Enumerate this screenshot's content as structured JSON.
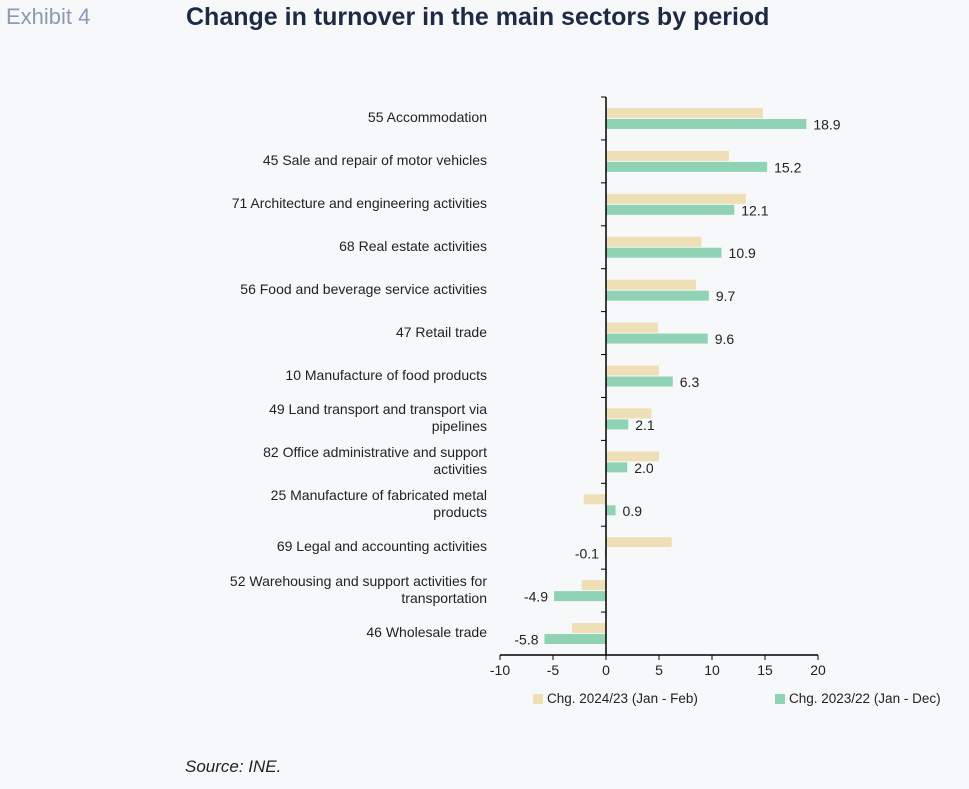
{
  "header": {
    "exhibit": "Exhibit 4",
    "title": "Change in turnover in the main sectors by period"
  },
  "source": "Source: INE.",
  "colors": {
    "series_a": "#efdfb7",
    "series_b": "#8fd3b4",
    "axis": "#000000"
  },
  "chart_data": {
    "type": "bar",
    "orientation": "horizontal",
    "categories": [
      "55 Accommodation",
      "45 Sale and repair of motor vehicles",
      "71 Architecture and engineering activities",
      "68 Real estate activities",
      "56 Food and beverage service activities",
      "47 Retail trade",
      "10 Manufacture of food products",
      "49 Land transport and transport via pipelines",
      "82 Office administrative and support activities",
      "25 Manufacture of fabricated metal products",
      "69 Legal and accounting activities",
      "52 Warehousing and support activities for transportation",
      "46 Wholesale trade"
    ],
    "category_lines": [
      [
        "55 Accommodation"
      ],
      [
        "45 Sale and repair of motor vehicles"
      ],
      [
        "71 Architecture and engineering activities"
      ],
      [
        "68 Real estate activities"
      ],
      [
        "56 Food and beverage service activities"
      ],
      [
        "47 Retail trade"
      ],
      [
        "10 Manufacture of food products"
      ],
      [
        "49 Land transport and transport via",
        "pipelines"
      ],
      [
        "82 Office administrative and support",
        "activities"
      ],
      [
        "25 Manufacture of fabricated metal",
        "products"
      ],
      [
        "69 Legal and accounting activities"
      ],
      [
        "52 Warehousing and support activities for",
        "transportation"
      ],
      [
        "46 Wholesale trade"
      ]
    ],
    "series": [
      {
        "name": "Chg. 2024/23 (Jan - Feb)",
        "values": [
          14.8,
          11.6,
          13.2,
          9.0,
          8.5,
          4.9,
          5.0,
          4.3,
          5.0,
          -2.1,
          6.2,
          -2.3,
          -3.2
        ]
      },
      {
        "name": "Chg. 2023/22 (Jan - Dec)",
        "values": [
          18.9,
          15.2,
          12.1,
          10.9,
          9.7,
          9.6,
          6.3,
          2.1,
          2.0,
          0.9,
          -0.1,
          -4.9,
          -5.8
        ],
        "data_labels": [
          "18.9",
          "15.2",
          "12.1",
          "10.9",
          "9.7",
          "9.6",
          "6.3",
          "2.1",
          "2.0",
          "0.9",
          "-0.1",
          "-4.9",
          "-5.8"
        ]
      }
    ],
    "xlim": [
      -10,
      20
    ],
    "xticks": [
      "-10",
      "-5",
      "0",
      "5",
      "10",
      "15",
      "20"
    ],
    "grid": false,
    "legend_position": "bottom"
  }
}
